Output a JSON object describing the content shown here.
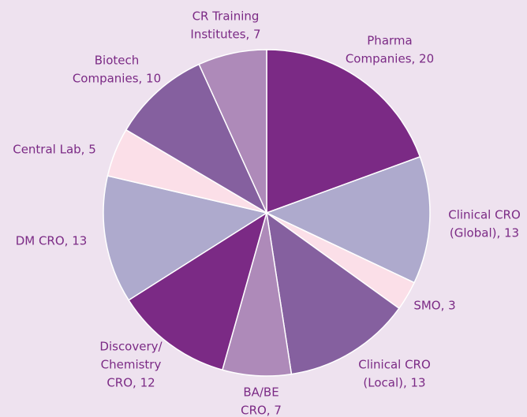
{
  "chart_data": {
    "type": "pie",
    "values": [
      20,
      13,
      3,
      13,
      7,
      12,
      13,
      5,
      10,
      7
    ],
    "value_labels": [
      [
        "Pharma",
        "Companies, 20"
      ],
      [
        "Clinical CRO",
        "(Global), 13"
      ],
      [
        "SMO, 3"
      ],
      [
        "Clinical CRO",
        "(Local), 13"
      ],
      [
        "BA/BE",
        "CRO, 7"
      ],
      [
        "Discovery/",
        "Chemistry",
        "CRO, 12"
      ],
      [
        "DM CRO, 13"
      ],
      [
        "Central Lab, 5"
      ],
      [
        "Biotech",
        "Companies, 10"
      ],
      [
        "CR Training",
        "Institutes, 7"
      ]
    ],
    "colors": [
      "#7b2a85",
      "#aeaacd",
      "#fbdfe8",
      "#85609f",
      "#ae8ab9",
      "#7b2a85",
      "#aeaacd",
      "#fbdfe8",
      "#85609f",
      "#ae8ab9"
    ]
  }
}
